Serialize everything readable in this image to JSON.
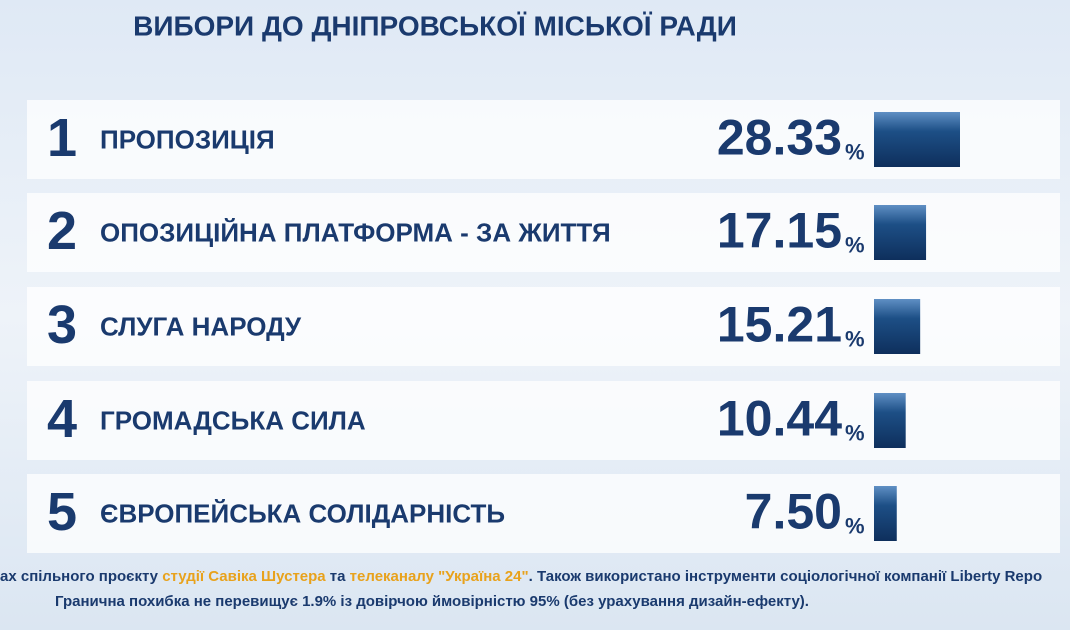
{
  "chart_data": {
    "type": "bar",
    "title": "ВИБОРИ ДО ДНІПРОВСЬКОЇ МІСЬКОЇ РАДИ",
    "ranks": [
      "1",
      "2",
      "3",
      "4",
      "5"
    ],
    "categories": [
      "ПРОПОЗИЦІЯ",
      "ОПОЗИЦІЙНА ПЛАТФОРМА - ЗА ЖИТТЯ",
      "СЛУГА НАРОДУ",
      "ГРОМАДСЬКА СИЛА",
      "ЄВРОПЕЙСЬКА СОЛІДАРНІСТЬ"
    ],
    "values": [
      28.33,
      17.15,
      15.21,
      10.44,
      7.5
    ],
    "value_labels": [
      "28.33",
      "17.15",
      "15.21",
      "10.44",
      "7.50"
    ],
    "unit": "%",
    "color": "#1d4f86",
    "footnote": [
      [
        "ах спільного проєкту ",
        "студії Савіка Шустера",
        " та ",
        "телеканалу \"Україна 24\"",
        ". Також використано інструменти соціологічної компанії Liberty Repo"
      ],
      [
        "Гранична похибка не перевищує 1.9% із довірчою ймовірністю 95% (без урахування дизайн-ефекту)."
      ]
    ]
  }
}
